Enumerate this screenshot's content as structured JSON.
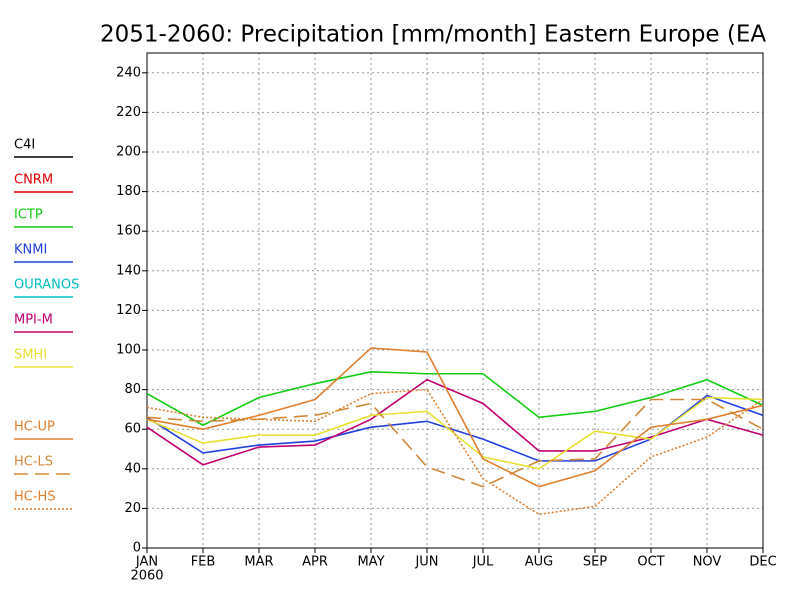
{
  "chart_data": {
    "type": "line",
    "title": "2051-2060: Precipitation [mm/month] Eastern Europe (EA",
    "categories": [
      "JAN",
      "FEB",
      "MAR",
      "APR",
      "MAY",
      "JUN",
      "JUL",
      "AUG",
      "SEP",
      "OCT",
      "NOV",
      "DEC"
    ],
    "x_sublabel": "2060",
    "ylim": [
      0,
      250
    ],
    "yticks": [
      0,
      20,
      40,
      60,
      80,
      100,
      120,
      140,
      160,
      180,
      200,
      220,
      240
    ],
    "grid": true,
    "series": [
      {
        "name": "C4I",
        "color": "#000000",
        "style": "solid",
        "values": [
          null,
          null,
          null,
          null,
          null,
          null,
          null,
          null,
          null,
          null,
          null,
          null
        ]
      },
      {
        "name": "CNRM",
        "color": "#e00000",
        "style": "solid",
        "values": [
          null,
          null,
          null,
          null,
          null,
          null,
          null,
          null,
          null,
          null,
          null,
          null
        ]
      },
      {
        "name": "ICTP",
        "color": "#10cc10",
        "style": "solid",
        "values": [
          78,
          62,
          76,
          83,
          89,
          88,
          88,
          66,
          69,
          76,
          85,
          72
        ]
      },
      {
        "name": "KNMI",
        "color": "#2040e0",
        "style": "solid",
        "values": [
          66,
          48,
          52,
          54,
          61,
          64,
          55,
          44,
          44,
          55,
          77,
          67
        ]
      },
      {
        "name": "OURANOS",
        "color": "#00c0c0",
        "style": "solid",
        "values": [
          null,
          null,
          null,
          null,
          null,
          null,
          null,
          null,
          null,
          null,
          null,
          null
        ]
      },
      {
        "name": "MPI-M",
        "color": "#c00070",
        "style": "solid",
        "values": [
          61,
          42,
          51,
          52,
          65,
          85,
          73,
          49,
          49,
          56,
          65,
          57
        ]
      },
      {
        "name": "SMHI",
        "color": "#e8e030",
        "style": "solid",
        "values": [
          65,
          53,
          57,
          57,
          67,
          69,
          46,
          40,
          59,
          55,
          76,
          75
        ]
      },
      {
        "name": "HC-UP",
        "color": "#e08030",
        "style": "solid",
        "values": [
          65,
          60,
          67,
          75,
          101,
          99,
          45,
          31,
          39,
          61,
          65,
          72
        ]
      },
      {
        "name": "HC-LS",
        "color": "#d08838",
        "style": "dashed",
        "values": [
          66,
          64,
          65,
          67,
          73,
          41,
          31,
          44,
          45,
          75,
          75,
          60
        ]
      },
      {
        "name": "HC-HS",
        "color": "#e08030",
        "style": "dotted",
        "values": [
          71,
          66,
          65,
          64,
          78,
          80,
          35,
          17,
          21,
          46,
          56,
          75
        ]
      }
    ]
  }
}
